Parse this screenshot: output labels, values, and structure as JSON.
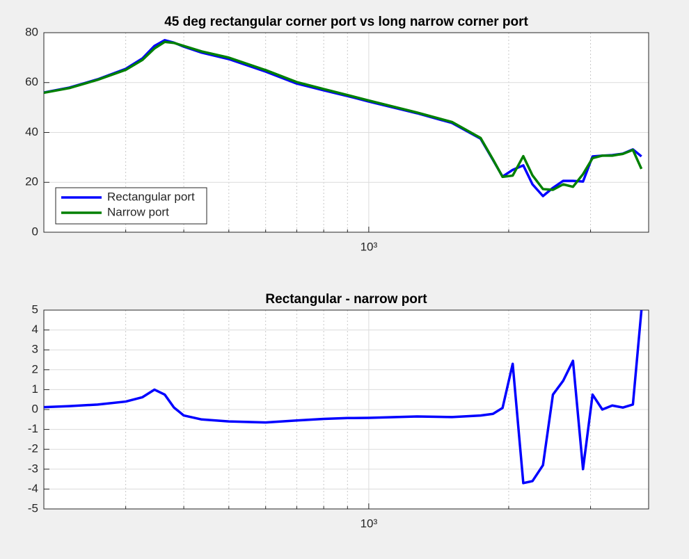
{
  "chart_data": [
    {
      "type": "line",
      "title": "45 deg rectangular corner port vs long narrow corner port",
      "x": [
        200,
        227,
        261,
        300,
        326,
        346,
        364,
        381,
        400,
        437,
        500,
        600,
        700,
        800,
        900,
        1000,
        1270,
        1510,
        1740,
        1850,
        1940,
        2040,
        2150,
        2250,
        2370,
        2490,
        2620,
        2750,
        2890,
        3030,
        3180,
        3340,
        3520,
        3700,
        3860
      ],
      "series": [
        {
          "name": "Rectangular port",
          "color": "#0000ff",
          "values": [
            56,
            58,
            61.3,
            65.5,
            69.7,
            74.7,
            77,
            76,
            74.4,
            72,
            69.4,
            64.4,
            59.6,
            56.9,
            54.6,
            52.4,
            47.7,
            43.8,
            37.5,
            29,
            22.3,
            25,
            26.8,
            19.2,
            14.5,
            17.8,
            20.6,
            20.6,
            20.3,
            30.4,
            30.7,
            30.9,
            31.5,
            33.2,
            30.4
          ]
        },
        {
          "name": "Narrow port",
          "color": "#008000",
          "values": [
            55.9,
            57.8,
            61.1,
            65.1,
            69.1,
            73.7,
            76.3,
            75.9,
            74.7,
            72.5,
            70,
            65,
            60.2,
            57.4,
            55,
            52.8,
            48,
            44.2,
            37.8,
            29.2,
            22.2,
            22.7,
            30.5,
            22.8,
            17.3,
            17,
            19.2,
            18.2,
            23.3,
            29.7,
            30.7,
            30.7,
            31.4,
            33,
            25.4
          ]
        }
      ],
      "xlim": [
        200,
        4000
      ],
      "log_x": true,
      "xticks": [
        {
          "value": 1000,
          "label": "10³"
        }
      ],
      "x_minor_grid": [
        300,
        400,
        500,
        600,
        700,
        800,
        900,
        2000,
        3000
      ],
      "ylim": [
        0,
        80
      ],
      "yticks": [
        0,
        20,
        40,
        60,
        80
      ],
      "grid": true,
      "legend": "southwest"
    },
    {
      "type": "line",
      "title": "Rectangular - narrow port",
      "x": [
        200,
        227,
        261,
        300,
        326,
        346,
        364,
        381,
        400,
        437,
        500,
        600,
        700,
        800,
        900,
        1000,
        1270,
        1510,
        1740,
        1850,
        1940,
        2040,
        2150,
        2250,
        2370,
        2490,
        2620,
        2750,
        2890,
        3030,
        3180,
        3340,
        3520,
        3700,
        3860
      ],
      "color": "#0000ff",
      "values": [
        0.12,
        0.17,
        0.25,
        0.4,
        0.62,
        1.0,
        0.75,
        0.1,
        -0.3,
        -0.5,
        -0.6,
        -0.65,
        -0.55,
        -0.47,
        -0.43,
        -0.42,
        -0.35,
        -0.38,
        -0.3,
        -0.22,
        0.08,
        2.3,
        -3.7,
        -3.6,
        -2.8,
        0.75,
        1.45,
        2.45,
        -3.0,
        0.75,
        0,
        0.2,
        0.1,
        0.25,
        5.0
      ],
      "xlim": [
        200,
        4000
      ],
      "log_x": true,
      "xticks": [
        {
          "value": 1000,
          "label": "10³"
        }
      ],
      "x_minor_grid": [
        300,
        400,
        500,
        600,
        700,
        800,
        900,
        2000,
        3000
      ],
      "ylim": [
        -5,
        5
      ],
      "yticks": [
        -5,
        -4,
        -3,
        -2,
        -1,
        0,
        1,
        2,
        3,
        4,
        5
      ],
      "grid": true
    }
  ]
}
